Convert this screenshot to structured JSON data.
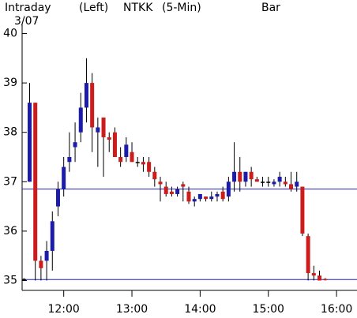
{
  "chart_data": {
    "type": "candlestick",
    "header": {
      "left": "Intraday",
      "date": "3/07",
      "axis_side": "(Left)",
      "symbol": "NTKK",
      "interval": "(5-Min)",
      "style": "Bar"
    },
    "x": [
      11.4167,
      11.5,
      11.5833,
      11.6667,
      11.75,
      11.8333,
      11.9167,
      12.0,
      12.0833,
      12.1667,
      12.25,
      12.3333,
      12.4167,
      12.5,
      12.5833,
      12.6667,
      12.75,
      12.8333,
      12.9167,
      13.0,
      13.0833,
      13.1667,
      13.25,
      13.3333,
      13.4167,
      13.5,
      13.5833,
      13.6667,
      13.75,
      13.8333,
      13.9167,
      14.0,
      14.0833,
      14.1667,
      14.25,
      14.3333,
      14.4167,
      14.5,
      14.5833,
      14.6667,
      14.75,
      14.8333,
      14.9167,
      15.0,
      15.0833,
      15.1667,
      15.25,
      15.3333,
      15.4167,
      15.5,
      15.5833,
      15.6667,
      15.75,
      15.8333
    ],
    "open": [
      35.03,
      37.0,
      38.6,
      35.4,
      35.4,
      35.6,
      36.5,
      36.85,
      37.4,
      37.7,
      38.0,
      38.5,
      39.0,
      38.0,
      38.3,
      37.9,
      38.0,
      37.5,
      37.5,
      37.6,
      37.4,
      37.4,
      37.4,
      37.2,
      37.0,
      36.9,
      36.8,
      36.75,
      36.95,
      36.8,
      36.6,
      36.65,
      36.7,
      36.65,
      36.7,
      36.8,
      36.7,
      37.0,
      37.2,
      37.0,
      37.2,
      37.05,
      37.0,
      37.0,
      36.95,
      37.0,
      37.0,
      36.95,
      36.9,
      36.9,
      35.9,
      35.15,
      35.1,
      35.03
    ],
    "high": [
      35.05,
      39.0,
      38.6,
      35.5,
      35.8,
      36.4,
      37.0,
      37.5,
      38.0,
      38.2,
      38.8,
      39.5,
      39.2,
      38.3,
      38.3,
      38.0,
      38.1,
      37.7,
      37.9,
      37.8,
      37.5,
      37.5,
      37.5,
      37.3,
      37.1,
      37.0,
      36.9,
      36.9,
      37.0,
      36.9,
      36.7,
      36.75,
      36.7,
      36.8,
      36.8,
      36.9,
      37.1,
      37.8,
      37.5,
      37.2,
      37.3,
      37.1,
      37.1,
      37.1,
      37.05,
      37.2,
      37.1,
      37.2,
      37.2,
      36.9,
      35.95,
      35.3,
      35.2,
      35.05
    ],
    "low": [
      35.0,
      37.0,
      35.0,
      35.0,
      35.0,
      35.2,
      36.3,
      36.7,
      37.2,
      37.4,
      37.8,
      38.2,
      37.6,
      37.3,
      37.1,
      37.6,
      37.5,
      37.3,
      37.4,
      37.4,
      37.3,
      37.2,
      37.1,
      36.9,
      36.6,
      36.7,
      36.7,
      36.7,
      36.6,
      36.55,
      36.5,
      36.6,
      36.6,
      36.6,
      36.6,
      36.6,
      36.6,
      36.8,
      36.8,
      36.9,
      36.9,
      37.0,
      36.9,
      36.9,
      36.9,
      36.9,
      36.9,
      36.8,
      36.8,
      35.9,
      35.0,
      35.0,
      35.0,
      35.0
    ],
    "close": [
      35.03,
      38.6,
      35.4,
      35.25,
      35.6,
      36.2,
      36.85,
      37.3,
      37.5,
      37.8,
      38.5,
      39.0,
      38.1,
      38.1,
      37.9,
      37.85,
      37.5,
      37.4,
      37.75,
      37.4,
      37.4,
      37.35,
      37.2,
      37.05,
      36.95,
      36.75,
      36.75,
      36.85,
      36.9,
      36.6,
      36.65,
      36.75,
      36.65,
      36.7,
      36.75,
      36.65,
      37.0,
      37.2,
      37.0,
      37.2,
      37.05,
      37.0,
      37.0,
      37.0,
      37.0,
      37.1,
      36.95,
      36.85,
      37.0,
      35.95,
      35.15,
      35.1,
      35.0,
      35.02
    ],
    "up_color": "#1c1ca8",
    "down_color": "#cc1c1c",
    "flat_color": "#000000",
    "hlines": [
      36.85,
      35.02
    ],
    "hline_color": "#2020c0",
    "xlim": [
      11.39,
      16.3
    ],
    "xticks": [
      {
        "value": 12,
        "label": "12:00"
      },
      {
        "value": 13,
        "label": "13:00"
      },
      {
        "value": 14,
        "label": "14:00"
      },
      {
        "value": 15,
        "label": "15:00"
      },
      {
        "value": 16,
        "label": "16:00"
      }
    ],
    "ylim": [
      34.8,
      40.2
    ],
    "yticks": [
      35,
      36,
      37,
      38,
      39,
      40
    ]
  }
}
